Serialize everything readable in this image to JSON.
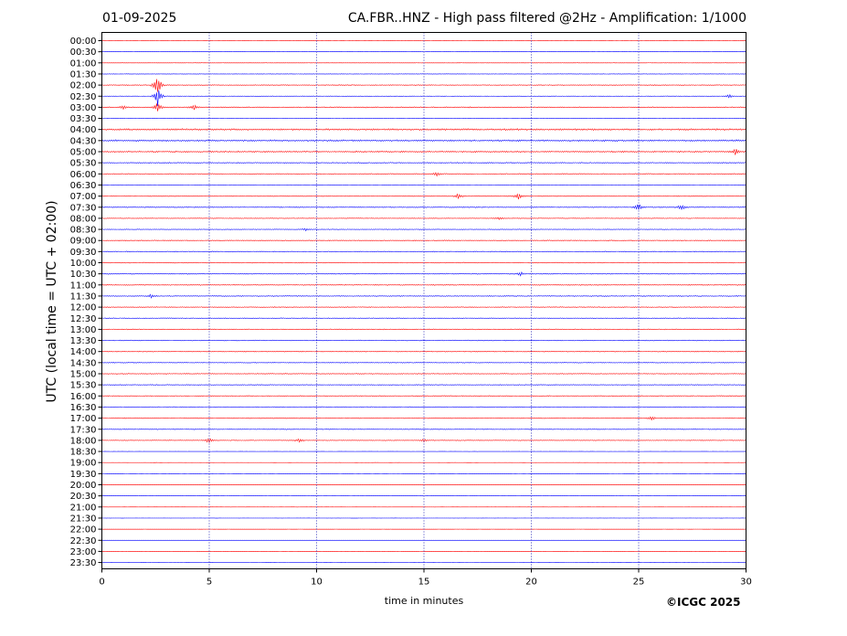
{
  "header": {
    "date": "01-09-2025",
    "title": "CA.FBR..HNZ - High pass filtered @2Hz - Amplification: 1/1000"
  },
  "footer": {
    "copyright": "©ICGC 2025"
  },
  "colors": {
    "trace_a": "#ff0000",
    "trace_b": "#0000ff",
    "grid": "#0000aa",
    "axis": "#000000"
  },
  "chart_data": {
    "type": "line",
    "xlabel": "time in minutes",
    "ylabel": "UTC (local time = UTC + 02:00)",
    "xlim": [
      0,
      30
    ],
    "x_ticks": [
      0,
      5,
      10,
      15,
      20,
      25,
      30
    ],
    "x_tick_labels": [
      "0",
      "5",
      "10",
      "15",
      "20",
      "25",
      "30"
    ],
    "vertical_grid": [
      5,
      10,
      15,
      20,
      25
    ],
    "grid": "dotted vertical lines",
    "rows": [
      "00:00",
      "00:30",
      "01:00",
      "01:30",
      "02:00",
      "02:30",
      "03:00",
      "03:30",
      "04:00",
      "04:30",
      "05:00",
      "05:30",
      "06:00",
      "06:30",
      "07:00",
      "07:30",
      "08:00",
      "08:30",
      "09:00",
      "09:30",
      "10:00",
      "10:30",
      "11:00",
      "11:30",
      "12:00",
      "12:30",
      "13:00",
      "13:30",
      "14:00",
      "14:30",
      "15:00",
      "15:30",
      "16:00",
      "16:30",
      "17:00",
      "17:30",
      "18:00",
      "18:30",
      "19:00",
      "19:30",
      "20:00",
      "20:30",
      "21:00",
      "21:30",
      "22:00",
      "22:30",
      "23:00",
      "23:30"
    ],
    "row_color_pattern": [
      "trace_a",
      "trace_b"
    ],
    "noise_level": [
      0.2,
      0.1,
      0.2,
      0.3,
      0.5,
      0.3,
      0.6,
      0.2,
      1.0,
      1.0,
      0.8,
      0.6,
      0.5,
      0.3,
      0.5,
      0.6,
      0.4,
      0.4,
      0.5,
      0.5,
      0.5,
      0.6,
      0.6,
      0.6,
      0.5,
      0.5,
      0.5,
      0.5,
      0.5,
      0.5,
      0.5,
      0.5,
      0.5,
      0.5,
      0.5,
      0.5,
      0.4,
      0.1,
      0.1,
      0.1,
      0.1,
      0.1,
      0.1,
      0.1,
      0.1,
      0.1,
      0.1,
      0.1
    ],
    "events": [
      {
        "row": "02:00",
        "minute": 2.6,
        "amplitude": 2.2
      },
      {
        "row": "02:30",
        "minute": 2.6,
        "amplitude": 1.8
      },
      {
        "row": "02:30",
        "minute": 29.2,
        "amplitude": 0.4
      },
      {
        "row": "03:00",
        "minute": 2.6,
        "amplitude": 1.0
      },
      {
        "row": "03:00",
        "minute": 1.0,
        "amplitude": 0.3
      },
      {
        "row": "03:00",
        "minute": 4.3,
        "amplitude": 0.5
      },
      {
        "row": "05:00",
        "minute": 29.5,
        "amplitude": 0.6
      },
      {
        "row": "06:00",
        "minute": 15.6,
        "amplitude": 0.35
      },
      {
        "row": "07:00",
        "minute": 16.6,
        "amplitude": 0.5
      },
      {
        "row": "07:00",
        "minute": 19.4,
        "amplitude": 0.8
      },
      {
        "row": "07:30",
        "minute": 25.0,
        "amplitude": 0.7
      },
      {
        "row": "07:30",
        "minute": 27.0,
        "amplitude": 0.6
      },
      {
        "row": "08:00",
        "minute": 18.5,
        "amplitude": 0.25
      },
      {
        "row": "08:30",
        "minute": 9.5,
        "amplitude": 0.25
      },
      {
        "row": "10:30",
        "minute": 19.5,
        "amplitude": 0.35
      },
      {
        "row": "11:30",
        "minute": 2.3,
        "amplitude": 0.35
      },
      {
        "row": "17:00",
        "minute": 25.6,
        "amplitude": 0.35
      },
      {
        "row": "18:00",
        "minute": 5.0,
        "amplitude": 0.6
      },
      {
        "row": "18:00",
        "minute": 9.2,
        "amplitude": 0.4
      },
      {
        "row": "18:00",
        "minute": 15.0,
        "amplitude": 0.3
      }
    ]
  }
}
